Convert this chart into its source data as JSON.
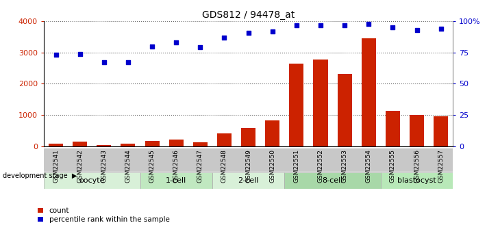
{
  "title": "GDS812 / 94478_at",
  "samples": [
    "GSM22541",
    "GSM22542",
    "GSM22543",
    "GSM22544",
    "GSM22545",
    "GSM22546",
    "GSM22547",
    "GSM22548",
    "GSM22549",
    "GSM22550",
    "GSM22551",
    "GSM22552",
    "GSM22553",
    "GSM22554",
    "GSM22555",
    "GSM22556",
    "GSM22557"
  ],
  "counts": [
    90,
    155,
    50,
    95,
    175,
    225,
    130,
    420,
    590,
    820,
    2640,
    2780,
    2310,
    3460,
    1140,
    1000,
    950
  ],
  "percentile": [
    73,
    74,
    67,
    67,
    80,
    83,
    79,
    87,
    91,
    92,
    97,
    97,
    97,
    98,
    95,
    93,
    94
  ],
  "bar_color": "#cc2200",
  "dot_color": "#0000cc",
  "ylim_left": [
    0,
    4000
  ],
  "ylim_right": [
    0,
    100
  ],
  "yticks_left": [
    0,
    1000,
    2000,
    3000,
    4000
  ],
  "yticks_right": [
    0,
    25,
    50,
    75,
    100
  ],
  "yticklabels_right": [
    "0",
    "25",
    "50",
    "75",
    "100%"
  ],
  "stages": [
    {
      "label": "oocyte",
      "start": 0,
      "end": 4,
      "color": "#d8f0d8"
    },
    {
      "label": "1-cell",
      "start": 4,
      "end": 7,
      "color": "#c0e8c0"
    },
    {
      "label": "2-cell",
      "start": 7,
      "end": 10,
      "color": "#d8f0d8"
    },
    {
      "label": "8-cell",
      "start": 10,
      "end": 14,
      "color": "#a8d8a8"
    },
    {
      "label": "blastocyst",
      "start": 14,
      "end": 17,
      "color": "#b8e8b8"
    }
  ],
  "dev_stage_label": "development stage",
  "legend_count_label": "count",
  "legend_pct_label": "percentile rank within the sample",
  "grid_color": "#666666",
  "bg_color": "#ffffff",
  "plot_bg": "#ffffff",
  "tick_label_color_left": "#cc2200",
  "tick_label_color_right": "#0000cc",
  "xlabel_row_bg": "#c8c8c8",
  "title_fontsize": 10
}
